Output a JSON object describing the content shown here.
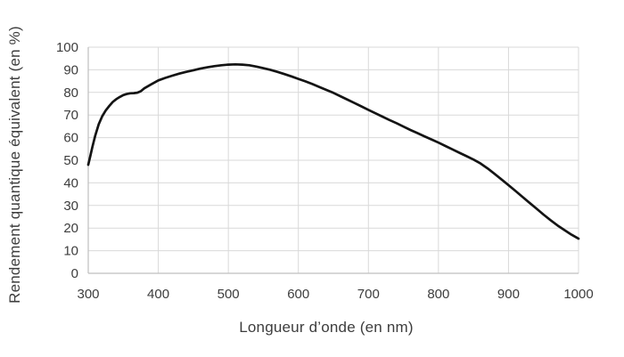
{
  "figure": {
    "background": "#ffffff"
  },
  "colors": {
    "grid": "#d9d9d9",
    "axis": "#bfbfbf",
    "tick_text": "#3d3d3d",
    "curve": "#141414"
  },
  "chart_data": {
    "type": "line",
    "title": "",
    "xlabel": "Longueur d’onde (en nm)",
    "ylabel": "Rendement quantique équivalent (en %)",
    "xlim": [
      300,
      1000
    ],
    "ylim": [
      0,
      100
    ],
    "xticks": [
      300,
      400,
      500,
      600,
      700,
      800,
      900,
      1000
    ],
    "yticks": [
      0,
      10,
      20,
      30,
      40,
      50,
      60,
      70,
      80,
      90,
      100
    ],
    "grid": true,
    "legend_position": "none",
    "series": [
      {
        "name": "Rendement quantique équivalent",
        "color": "#141414",
        "points": [
          [
            300,
            48.0
          ],
          [
            303,
            52.0
          ],
          [
            306,
            56.0
          ],
          [
            310,
            61.0
          ],
          [
            315,
            66.0
          ],
          [
            320,
            69.5
          ],
          [
            325,
            72.0
          ],
          [
            330,
            74.0
          ],
          [
            335,
            75.8
          ],
          [
            340,
            77.0
          ],
          [
            345,
            78.0
          ],
          [
            350,
            78.8
          ],
          [
            355,
            79.3
          ],
          [
            360,
            79.6
          ],
          [
            365,
            79.7
          ],
          [
            370,
            79.9
          ],
          [
            375,
            80.5
          ],
          [
            380,
            81.8
          ],
          [
            390,
            83.6
          ],
          [
            400,
            85.3
          ],
          [
            410,
            86.4
          ],
          [
            420,
            87.4
          ],
          [
            430,
            88.3
          ],
          [
            440,
            89.1
          ],
          [
            450,
            89.8
          ],
          [
            460,
            90.5
          ],
          [
            470,
            91.1
          ],
          [
            480,
            91.6
          ],
          [
            490,
            92.0
          ],
          [
            500,
            92.3
          ],
          [
            510,
            92.4
          ],
          [
            520,
            92.3
          ],
          [
            530,
            92.0
          ],
          [
            540,
            91.4
          ],
          [
            550,
            90.7
          ],
          [
            560,
            90.0
          ],
          [
            570,
            89.1
          ],
          [
            580,
            88.1
          ],
          [
            590,
            87.1
          ],
          [
            600,
            86.0
          ],
          [
            610,
            84.9
          ],
          [
            620,
            83.7
          ],
          [
            630,
            82.4
          ],
          [
            640,
            81.1
          ],
          [
            650,
            79.8
          ],
          [
            660,
            78.3
          ],
          [
            670,
            76.8
          ],
          [
            680,
            75.3
          ],
          [
            690,
            73.8
          ],
          [
            700,
            72.3
          ],
          [
            710,
            70.8
          ],
          [
            720,
            69.3
          ],
          [
            730,
            67.8
          ],
          [
            740,
            66.4
          ],
          [
            750,
            64.9
          ],
          [
            760,
            63.4
          ],
          [
            770,
            62.0
          ],
          [
            780,
            60.6
          ],
          [
            790,
            59.2
          ],
          [
            800,
            57.8
          ],
          [
            810,
            56.3
          ],
          [
            820,
            54.8
          ],
          [
            830,
            53.3
          ],
          [
            840,
            51.8
          ],
          [
            850,
            50.3
          ],
          [
            860,
            48.6
          ],
          [
            870,
            46.4
          ],
          [
            880,
            44.0
          ],
          [
            890,
            41.5
          ],
          [
            900,
            39.0
          ],
          [
            910,
            36.4
          ],
          [
            920,
            33.8
          ],
          [
            930,
            31.2
          ],
          [
            940,
            28.6
          ],
          [
            950,
            26.0
          ],
          [
            960,
            23.5
          ],
          [
            970,
            21.2
          ],
          [
            980,
            19.1
          ],
          [
            990,
            17.1
          ],
          [
            1000,
            15.3
          ]
        ]
      }
    ]
  }
}
